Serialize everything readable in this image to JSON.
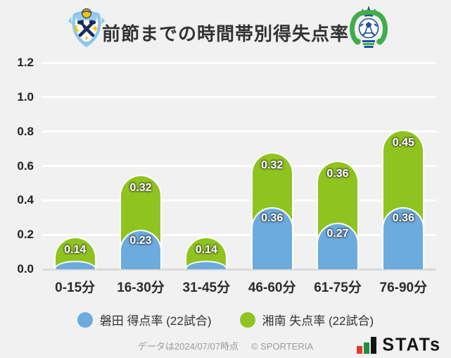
{
  "header": {
    "title": "前節までの時間帯別得失点率"
  },
  "chart_data": {
    "type": "bar",
    "stacked": true,
    "categories": [
      "0-15分",
      "16-30分",
      "31-45分",
      "46-60分",
      "61-75分",
      "76-90分"
    ],
    "series": [
      {
        "name": "磐田 得点率 (22試合)",
        "color": "#6babdd",
        "values": [
          0.05,
          0.23,
          0.05,
          0.36,
          0.27,
          0.36
        ],
        "labels": [
          "",
          "0.23",
          "",
          "0.36",
          "0.27",
          "0.36"
        ]
      },
      {
        "name": "湘南 失点率 (22試合)",
        "color": "#8fc31f",
        "values": [
          0.14,
          0.32,
          0.14,
          0.32,
          0.36,
          0.45
        ],
        "labels": [
          "0.14",
          "0.32",
          "0.14",
          "0.32",
          "0.36",
          "0.45"
        ]
      }
    ],
    "title": "前節までの時間帯別得失点率",
    "xlabel": "",
    "ylabel": "",
    "ylim": [
      0,
      1.2
    ],
    "yticks": [
      0,
      0.2,
      0.4,
      0.6,
      0.8,
      1.0,
      1.2
    ],
    "ytick_labels": [
      "0.0",
      "0.2",
      "0.4",
      "0.6",
      "0.8",
      "1.0",
      "1.2"
    ],
    "grid": true,
    "legend_position": "bottom"
  },
  "footer": {
    "note": "データは2024/07/07時点",
    "copyright": "© SPORTERIA",
    "brand": "STATs"
  },
  "colors": {
    "background": "#f1f1f1",
    "gridline": "#ffffff",
    "baseline": "#d9d9d9",
    "bar_blue": "#6babdd",
    "bar_green": "#8fc31f",
    "stats_red": "#e5372e",
    "stats_green": "#1f8f45",
    "stats_black": "#141414"
  }
}
